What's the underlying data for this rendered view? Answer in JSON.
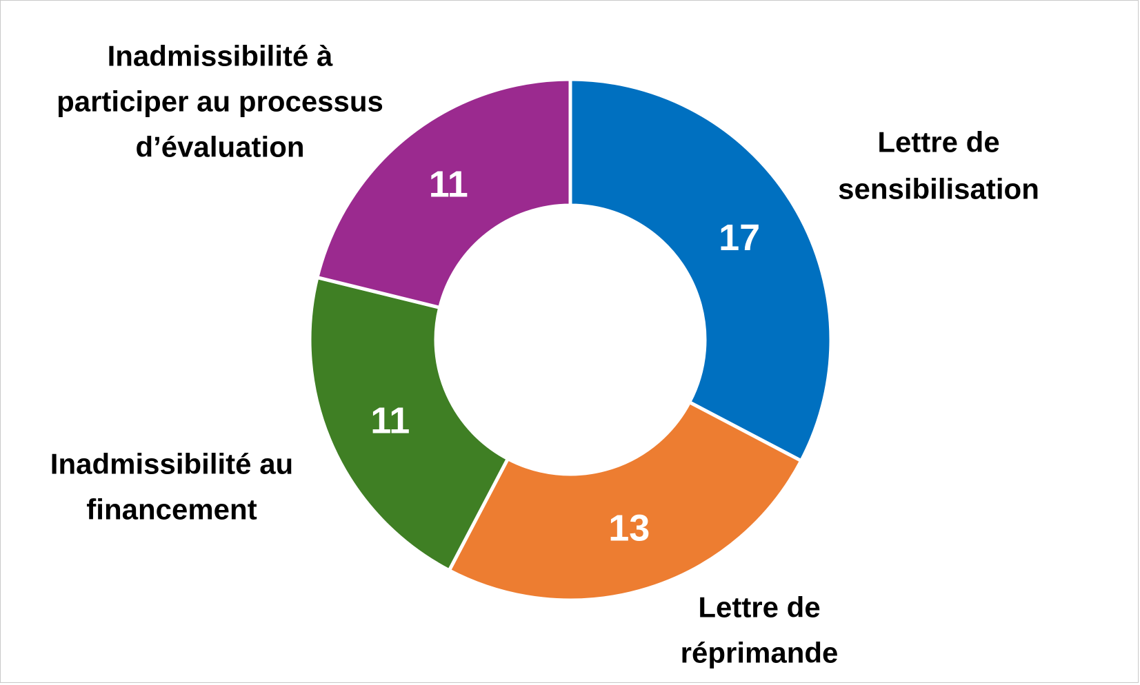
{
  "chart_data": {
    "type": "pie",
    "variant": "donut",
    "title": "",
    "categories": [
      "Lettre de sensibilisation",
      "Lettre de réprimande",
      "Inadmissibilité au financement",
      "Inadmissibilité à participer au processus d’évaluation"
    ],
    "label_lines": [
      [
        "Lettre de",
        "sensibilisation"
      ],
      [
        "Lettre de",
        "réprimande"
      ],
      [
        "Inadmissibilité au",
        "financement"
      ],
      [
        "Inadmissibilité à",
        "participer au processus",
        "d’évaluation"
      ]
    ],
    "values": [
      17,
      13,
      11,
      11
    ],
    "colors": [
      "#0070C0",
      "#ED7D31",
      "#3F7F24",
      "#9B2A8F"
    ],
    "start_angle": "12 o'clock",
    "direction": "clockwise",
    "legend": "none",
    "data_labels": "inside"
  }
}
